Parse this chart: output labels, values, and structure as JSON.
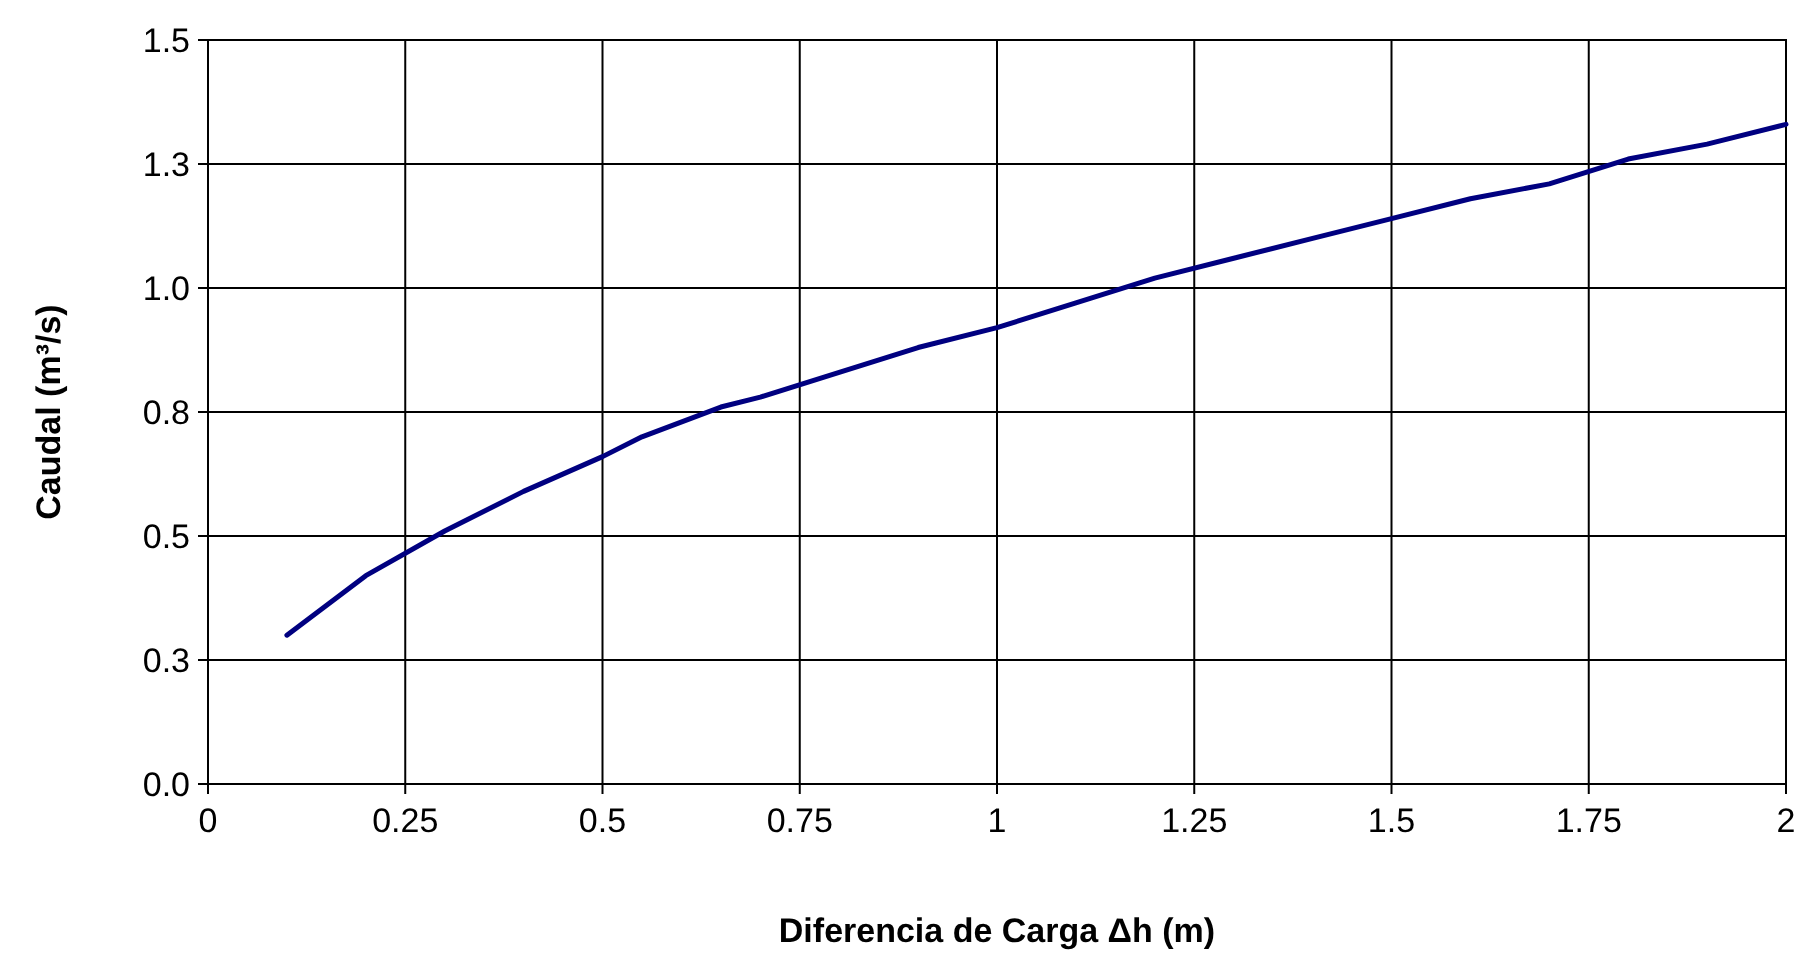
{
  "chart_data": {
    "type": "line",
    "xlabel": "Diferencia de Carga  Δh  (m)",
    "ylabel": "Caudal (m³/s)",
    "x": [
      0.1,
      0.15,
      0.2,
      0.3,
      0.4,
      0.5,
      0.55,
      0.65,
      0.7,
      0.8,
      0.9,
      1.0,
      1.1,
      1.2,
      1.3,
      1.4,
      1.5,
      1.6,
      1.7,
      1.8,
      1.9,
      2.0
    ],
    "series": [
      {
        "color": "#000080",
        "values": [
          0.3,
          0.36,
          0.42,
          0.51,
          0.59,
          0.66,
          0.7,
          0.76,
          0.78,
          0.83,
          0.88,
          0.92,
          0.97,
          1.02,
          1.06,
          1.1,
          1.14,
          1.18,
          1.21,
          1.26,
          1.29,
          1.33
        ]
      }
    ],
    "xlim": [
      0,
      2
    ],
    "xticks": [
      0,
      0.25,
      0.5,
      0.75,
      1,
      1.25,
      1.5,
      1.75,
      2
    ],
    "ylim": [
      0,
      1.5
    ],
    "yticks": [
      {
        "value": 0,
        "label": "0.0"
      },
      {
        "value": 0.25,
        "label": "0.3"
      },
      {
        "value": 0.5,
        "label": "0.5"
      },
      {
        "value": 0.75,
        "label": "0.8"
      },
      {
        "value": 1,
        "label": "1.0"
      },
      {
        "value": 1.25,
        "label": "1.3"
      },
      {
        "value": 1.5,
        "label": "1.5"
      }
    ],
    "grid": true,
    "marker": "none",
    "line_style": "solid"
  }
}
